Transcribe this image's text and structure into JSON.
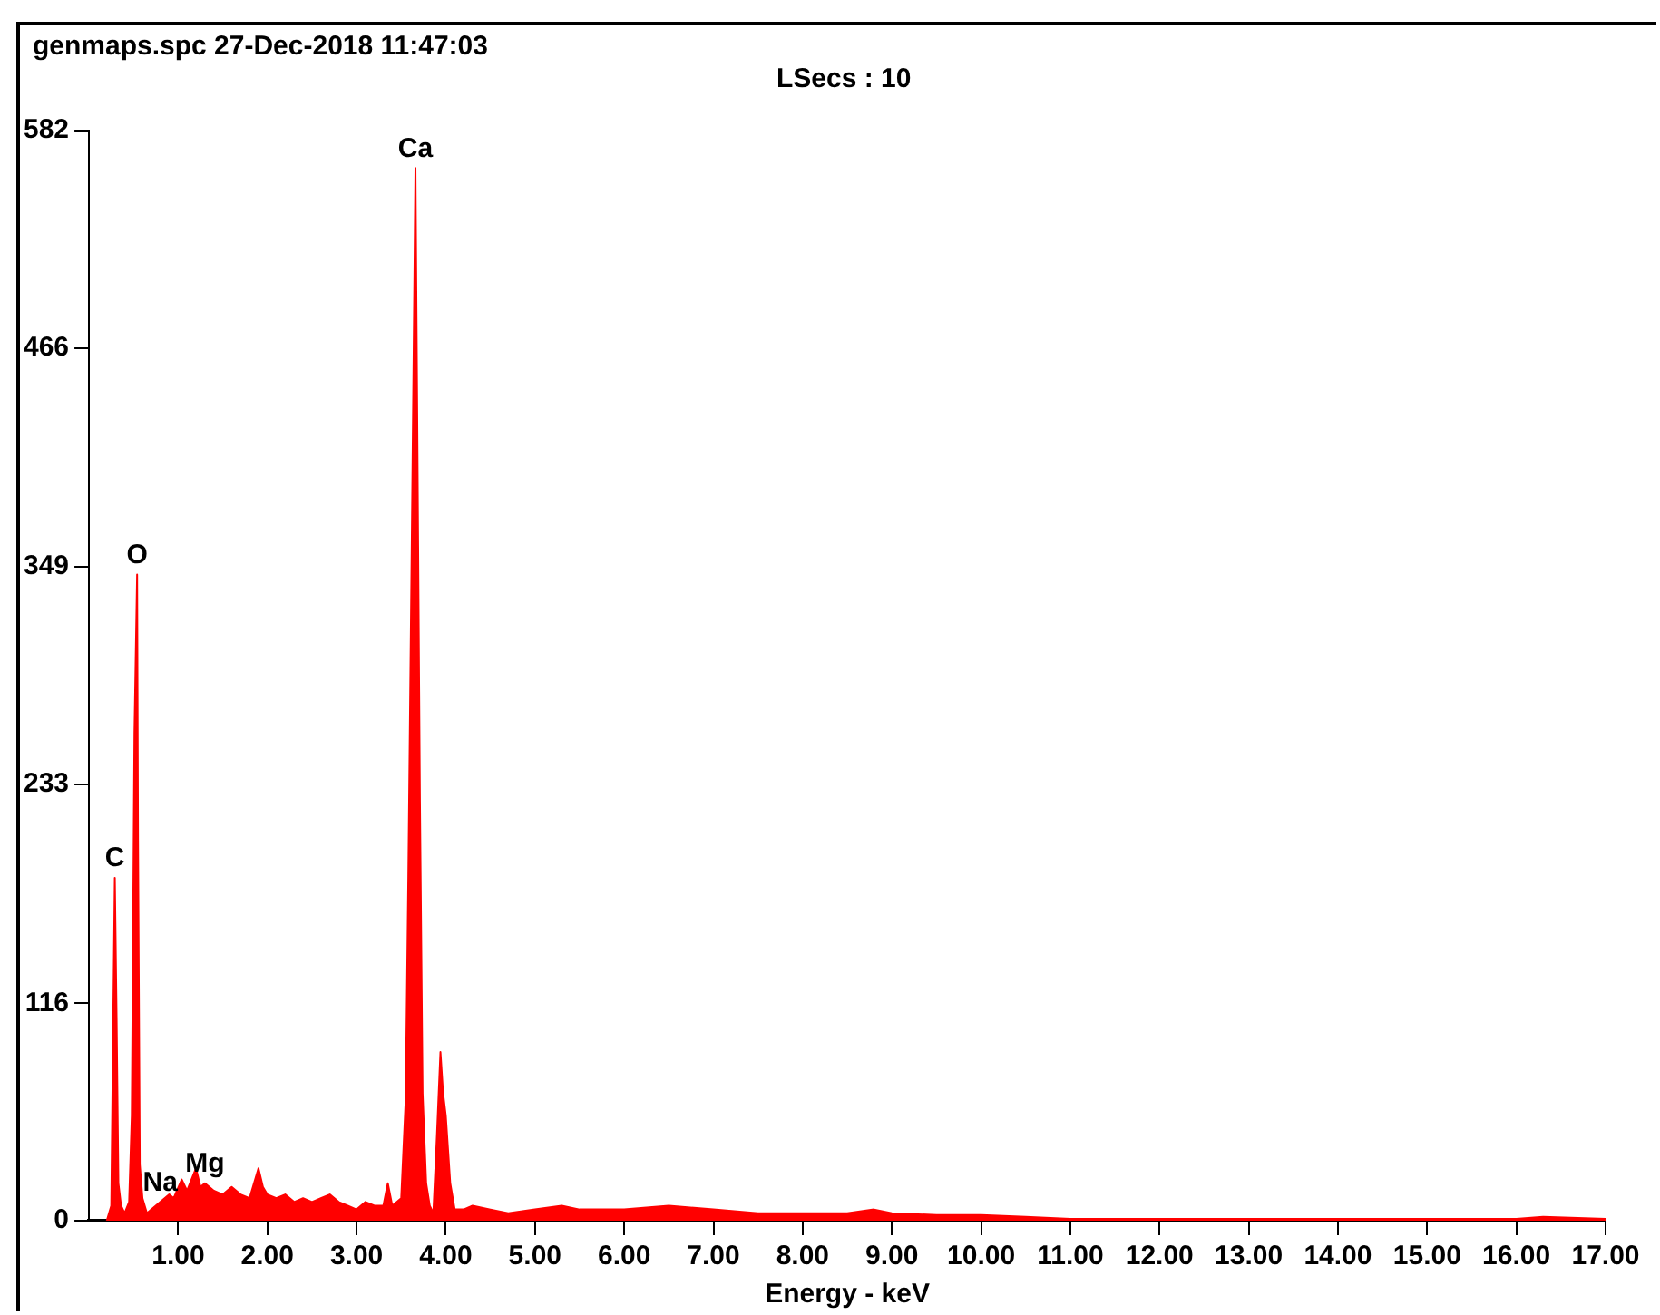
{
  "chart_data": {
    "type": "area",
    "title": "genmaps.spc  27-Dec-2018 11:47:03",
    "subtitle": "LSecs :  10",
    "xlabel": "Energy - keV",
    "annotations": [
      {
        "text": "C",
        "x": 0.29,
        "y": 183
      },
      {
        "text": "O",
        "x": 0.54,
        "y": 345
      },
      {
        "text": "Na",
        "x": 0.8,
        "y": 10
      },
      {
        "text": "Mg",
        "x": 1.3,
        "y": 20
      },
      {
        "text": "Ca",
        "x": 3.66,
        "y": 562
      }
    ],
    "x": [
      0.2,
      0.25,
      0.27,
      0.29,
      0.31,
      0.33,
      0.36,
      0.4,
      0.45,
      0.48,
      0.51,
      0.54,
      0.55,
      0.57,
      0.6,
      0.65,
      0.7,
      0.8,
      0.9,
      0.95,
      1.04,
      1.1,
      1.2,
      1.25,
      1.3,
      1.4,
      1.5,
      1.6,
      1.7,
      1.8,
      1.9,
      1.95,
      2.0,
      2.1,
      2.2,
      2.3,
      2.4,
      2.5,
      2.6,
      2.7,
      2.8,
      2.9,
      3.0,
      3.1,
      3.2,
      3.3,
      3.35,
      3.4,
      3.5,
      3.55,
      3.58,
      3.62,
      3.66,
      3.69,
      3.71,
      3.74,
      3.78,
      3.82,
      3.86,
      3.9,
      3.94,
      3.97,
      4.0,
      4.05,
      4.1,
      4.2,
      4.3,
      4.5,
      4.7,
      5.0,
      5.3,
      5.5,
      6.0,
      6.5,
      7.0,
      7.5,
      8.0,
      8.5,
      8.8,
      9.0,
      9.5,
      10.0,
      10.5,
      11.0,
      12.0,
      13.0,
      14.0,
      15.0,
      16.0,
      16.3,
      17.0
    ],
    "series": [
      {
        "color": "#ff0000",
        "values": [
          0,
          8,
          98,
          183,
          108,
          20,
          8,
          4,
          10,
          56,
          260,
          345,
          203,
          30,
          12,
          4,
          6,
          10,
          14,
          12,
          22,
          16,
          28,
          18,
          20,
          16,
          14,
          18,
          14,
          12,
          28,
          18,
          14,
          12,
          14,
          10,
          12,
          10,
          12,
          14,
          10,
          8,
          6,
          10,
          8,
          8,
          20,
          8,
          12,
          64,
          184,
          369,
          562,
          360,
          224,
          68,
          20,
          8,
          4,
          45,
          90,
          68,
          56,
          20,
          6,
          6,
          8,
          6,
          4,
          6,
          8,
          6,
          6,
          8,
          6,
          4,
          4,
          4,
          6,
          4,
          3,
          3,
          2,
          1,
          1,
          1,
          1,
          1,
          1,
          2,
          1
        ]
      }
    ],
    "marker": "none",
    "xlim": [
      0,
      17
    ],
    "xticks": [
      {
        "value": 1,
        "label": "1.00"
      },
      {
        "value": 2,
        "label": "2.00"
      },
      {
        "value": 3,
        "label": "3.00"
      },
      {
        "value": 4,
        "label": "4.00"
      },
      {
        "value": 5,
        "label": "5.00"
      },
      {
        "value": 6,
        "label": "6.00"
      },
      {
        "value": 7,
        "label": "7.00"
      },
      {
        "value": 8,
        "label": "8.00"
      },
      {
        "value": 9,
        "label": "9.00"
      },
      {
        "value": 10,
        "label": "10.00"
      },
      {
        "value": 11,
        "label": "11.00"
      },
      {
        "value": 12,
        "label": "12.00"
      },
      {
        "value": 13,
        "label": "13.00"
      },
      {
        "value": 14,
        "label": "14.00"
      },
      {
        "value": 15,
        "label": "15.00"
      },
      {
        "value": 16,
        "label": "16.00"
      },
      {
        "value": 17,
        "label": "17.00"
      }
    ],
    "ylim": [
      0,
      582
    ],
    "yticks": [
      0,
      116,
      233,
      349,
      466,
      582
    ]
  }
}
